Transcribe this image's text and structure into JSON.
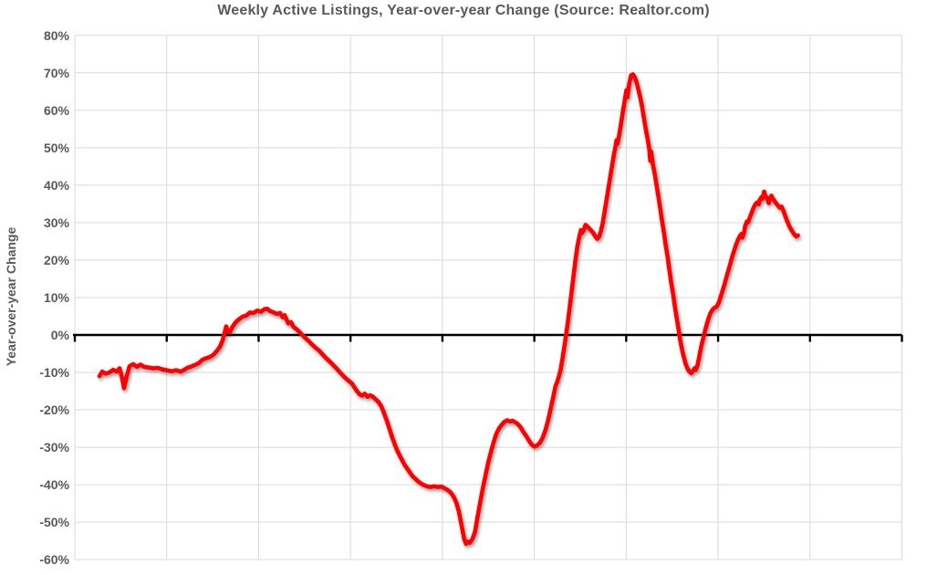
{
  "colors": {
    "line": "#FF0000",
    "grid": "#D9D9D9",
    "axis": "#000000",
    "text": "#595959",
    "background": "#FFFFFF"
  },
  "chart_data": {
    "type": "line",
    "title": "Weekly Active Listings, Year-over-year Change (Source: Realtor.com)",
    "xlabel": "",
    "ylabel": "Year-over-year Change",
    "ylim": [
      -60,
      80
    ],
    "y_ticks": [
      80,
      70,
      60,
      50,
      40,
      30,
      20,
      10,
      0,
      -10,
      -20,
      -30,
      -40,
      -50,
      -60
    ],
    "y_tick_labels": [
      "80%",
      "70%",
      "60%",
      "50%",
      "40%",
      "30%",
      "20%",
      "10%",
      "0%",
      "-10%",
      "-20%",
      "-30%",
      "-40%",
      "-50%",
      "-60%"
    ],
    "x_axis": {
      "tick_labels_visible": false,
      "gridline_intervals": 9,
      "zero_line": true
    },
    "grid": true,
    "legend": false,
    "series": [
      {
        "name": "Weekly Active Listings YoY %",
        "color": "#FF0000",
        "x_unit": "percent_across_plot",
        "points": [
          [
            2.98,
            -11
          ],
          [
            3.31,
            -9.8
          ],
          [
            3.75,
            -10.3
          ],
          [
            4.19,
            -10
          ],
          [
            4.63,
            -9.3
          ],
          [
            5.07,
            -9.8
          ],
          [
            5.4,
            -8.9
          ],
          [
            5.73,
            -11.5
          ],
          [
            5.95,
            -14.2
          ],
          [
            6.28,
            -11
          ],
          [
            6.62,
            -8.3
          ],
          [
            7.06,
            -7.8
          ],
          [
            7.5,
            -8.5
          ],
          [
            7.94,
            -7.9
          ],
          [
            8.38,
            -8.5
          ],
          [
            8.93,
            -8.7
          ],
          [
            9.48,
            -8.9
          ],
          [
            10.03,
            -8.8
          ],
          [
            10.58,
            -9.2
          ],
          [
            11.13,
            -9.4
          ],
          [
            11.69,
            -9.7
          ],
          [
            12.24,
            -9.4
          ],
          [
            12.79,
            -9.8
          ],
          [
            13.23,
            -9.3
          ],
          [
            13.67,
            -8.7
          ],
          [
            14.11,
            -8.4
          ],
          [
            14.55,
            -8
          ],
          [
            14.99,
            -7.5
          ],
          [
            15.44,
            -6.6
          ],
          [
            15.88,
            -6.2
          ],
          [
            16.32,
            -5.9
          ],
          [
            16.76,
            -5.3
          ],
          [
            17.2,
            -4.2
          ],
          [
            17.53,
            -3.2
          ],
          [
            17.86,
            -1.5
          ],
          [
            18.08,
            0.3
          ],
          [
            18.3,
            2.3
          ],
          [
            18.52,
            0.8
          ],
          [
            18.74,
            0.7
          ],
          [
            19.07,
            2.2
          ],
          [
            19.4,
            3.3
          ],
          [
            19.85,
            4.2
          ],
          [
            20.29,
            4.9
          ],
          [
            20.73,
            5.2
          ],
          [
            21.17,
            6
          ],
          [
            21.61,
            5.9
          ],
          [
            22.05,
            6.5
          ],
          [
            22.49,
            6.2
          ],
          [
            22.93,
            6.9
          ],
          [
            23.26,
            7
          ],
          [
            23.59,
            6.4
          ],
          [
            24.04,
            6
          ],
          [
            24.48,
            5.6
          ],
          [
            24.81,
            5.9
          ],
          [
            25.14,
            4.7
          ],
          [
            25.36,
            5.3
          ],
          [
            25.58,
            4.2
          ],
          [
            25.8,
            3.1
          ],
          [
            26.13,
            3.4
          ],
          [
            26.46,
            2.1
          ],
          [
            26.9,
            1.4
          ],
          [
            27.34,
            0.4
          ],
          [
            27.78,
            -0.6
          ],
          [
            28.23,
            -1.5
          ],
          [
            28.67,
            -2.5
          ],
          [
            29.11,
            -3.4
          ],
          [
            29.55,
            -4.2
          ],
          [
            29.99,
            -5.3
          ],
          [
            30.43,
            -6.3
          ],
          [
            30.87,
            -7.2
          ],
          [
            31.31,
            -8.2
          ],
          [
            31.75,
            -9.2
          ],
          [
            32.19,
            -10.3
          ],
          [
            32.63,
            -11.3
          ],
          [
            33.08,
            -12.2
          ],
          [
            33.52,
            -13
          ],
          [
            33.96,
            -14.5
          ],
          [
            34.4,
            -15.8
          ],
          [
            34.73,
            -16.2
          ],
          [
            35.06,
            -15.7
          ],
          [
            35.39,
            -16.5
          ],
          [
            35.72,
            -16.1
          ],
          [
            36.05,
            -16.5
          ],
          [
            36.38,
            -17.2
          ],
          [
            36.71,
            -17.9
          ],
          [
            37.04,
            -19
          ],
          [
            37.38,
            -20.8
          ],
          [
            37.71,
            -22.8
          ],
          [
            38.04,
            -25
          ],
          [
            38.37,
            -27.3
          ],
          [
            38.7,
            -29.3
          ],
          [
            39.03,
            -31.1
          ],
          [
            39.47,
            -33
          ],
          [
            39.91,
            -34.8
          ],
          [
            40.35,
            -36.2
          ],
          [
            40.79,
            -37.6
          ],
          [
            41.23,
            -38.5
          ],
          [
            41.68,
            -39.4
          ],
          [
            42.12,
            -40
          ],
          [
            42.56,
            -40.4
          ],
          [
            43,
            -40.6
          ],
          [
            43.44,
            -40.4
          ],
          [
            43.88,
            -40.6
          ],
          [
            44.32,
            -40.5
          ],
          [
            44.76,
            -41
          ],
          [
            45.09,
            -41.4
          ],
          [
            45.42,
            -42
          ],
          [
            45.75,
            -43
          ],
          [
            46.09,
            -44.5
          ],
          [
            46.42,
            -47
          ],
          [
            46.64,
            -49.5
          ],
          [
            46.86,
            -52
          ],
          [
            47.08,
            -54.5
          ],
          [
            47.3,
            -55.8
          ],
          [
            47.52,
            -55.2
          ],
          [
            47.74,
            -55.5
          ],
          [
            48.07,
            -54.5
          ],
          [
            48.4,
            -52.5
          ],
          [
            48.62,
            -49.5
          ],
          [
            48.95,
            -45.5
          ],
          [
            49.28,
            -41.5
          ],
          [
            49.61,
            -38
          ],
          [
            49.94,
            -34.5
          ],
          [
            50.28,
            -31.5
          ],
          [
            50.61,
            -28.8
          ],
          [
            50.94,
            -26.5
          ],
          [
            51.27,
            -25
          ],
          [
            51.6,
            -24
          ],
          [
            51.93,
            -23.2
          ],
          [
            52.26,
            -22.8
          ],
          [
            52.59,
            -23.1
          ],
          [
            52.92,
            -22.9
          ],
          [
            53.25,
            -23.3
          ],
          [
            53.58,
            -23.8
          ],
          [
            53.91,
            -24.7
          ],
          [
            54.24,
            -25.9
          ],
          [
            54.58,
            -27
          ],
          [
            54.91,
            -28.2
          ],
          [
            55.24,
            -29.3
          ],
          [
            55.57,
            -29.8
          ],
          [
            55.9,
            -29.5
          ],
          [
            56.23,
            -28.8
          ],
          [
            56.56,
            -27.5
          ],
          [
            56.89,
            -25.5
          ],
          [
            57.22,
            -22.8
          ],
          [
            57.55,
            -19.5
          ],
          [
            57.88,
            -16.2
          ],
          [
            58.1,
            -13.8
          ],
          [
            58.32,
            -12.5
          ],
          [
            58.54,
            -11
          ],
          [
            58.76,
            -9
          ],
          [
            58.98,
            -6
          ],
          [
            59.21,
            -2.8
          ],
          [
            59.43,
            0.5
          ],
          [
            59.65,
            4
          ],
          [
            59.87,
            8
          ],
          [
            60.09,
            12
          ],
          [
            60.31,
            16
          ],
          [
            60.53,
            20
          ],
          [
            60.75,
            23.5
          ],
          [
            60.97,
            26
          ],
          [
            61.19,
            28
          ],
          [
            61.3,
            27.2
          ],
          [
            61.52,
            27.9
          ],
          [
            61.74,
            29.4
          ],
          [
            61.96,
            29
          ],
          [
            62.29,
            28.2
          ],
          [
            62.62,
            27.4
          ],
          [
            62.95,
            26.3
          ],
          [
            63.18,
            25.7
          ],
          [
            63.4,
            26.3
          ],
          [
            63.62,
            27.8
          ],
          [
            63.84,
            30
          ],
          [
            64.06,
            33
          ],
          [
            64.28,
            36
          ],
          [
            64.5,
            39
          ],
          [
            64.72,
            42
          ],
          [
            64.94,
            45
          ],
          [
            65.16,
            48
          ],
          [
            65.38,
            50.5
          ],
          [
            65.49,
            52
          ],
          [
            65.6,
            51
          ],
          [
            65.82,
            53.5
          ],
          [
            66.04,
            56.5
          ],
          [
            66.26,
            59.5
          ],
          [
            66.48,
            62.5
          ],
          [
            66.7,
            65.4
          ],
          [
            66.81,
            63.5
          ],
          [
            67.03,
            67
          ],
          [
            67.25,
            69.3
          ],
          [
            67.48,
            69.6
          ],
          [
            67.7,
            68.8
          ],
          [
            67.92,
            67.5
          ],
          [
            68.14,
            65.5
          ],
          [
            68.36,
            63.5
          ],
          [
            68.58,
            61
          ],
          [
            68.8,
            58
          ],
          [
            69.02,
            55
          ],
          [
            69.24,
            52.5
          ],
          [
            69.46,
            49.5
          ],
          [
            69.57,
            46.5
          ],
          [
            69.68,
            49
          ],
          [
            69.9,
            45.5
          ],
          [
            70.12,
            43
          ],
          [
            70.34,
            40
          ],
          [
            70.56,
            37
          ],
          [
            70.78,
            33.8
          ],
          [
            71,
            30.5
          ],
          [
            71.22,
            27.5
          ],
          [
            71.44,
            24
          ],
          [
            71.66,
            21
          ],
          [
            71.88,
            17.5
          ],
          [
            72.1,
            14
          ],
          [
            72.33,
            11
          ],
          [
            72.55,
            7.5
          ],
          [
            72.77,
            4.5
          ],
          [
            72.99,
            1.5
          ],
          [
            73.21,
            -1.5
          ],
          [
            73.43,
            -4
          ],
          [
            73.65,
            -6
          ],
          [
            73.87,
            -7.8
          ],
          [
            74.09,
            -9
          ],
          [
            74.31,
            -9.8
          ],
          [
            74.53,
            -10.2
          ],
          [
            74.75,
            -9.5
          ],
          [
            74.97,
            -8.8
          ],
          [
            75.08,
            -9.3
          ],
          [
            75.3,
            -8
          ],
          [
            75.52,
            -5.5
          ],
          [
            75.74,
            -3
          ],
          [
            75.96,
            -1
          ],
          [
            76.18,
            1
          ],
          [
            76.41,
            2.9
          ],
          [
            76.63,
            4.5
          ],
          [
            76.85,
            5.8
          ],
          [
            77.07,
            6.6
          ],
          [
            77.29,
            7.2
          ],
          [
            77.51,
            7.4
          ],
          [
            77.73,
            8
          ],
          [
            77.95,
            9.2
          ],
          [
            78.17,
            10.8
          ],
          [
            78.39,
            12.3
          ],
          [
            78.61,
            14
          ],
          [
            78.83,
            15.8
          ],
          [
            79.05,
            17.5
          ],
          [
            79.27,
            19.2
          ],
          [
            79.49,
            21
          ],
          [
            79.71,
            22.5
          ],
          [
            79.93,
            24
          ],
          [
            80.15,
            25.3
          ],
          [
            80.37,
            26.3
          ],
          [
            80.6,
            27
          ],
          [
            80.71,
            26
          ],
          [
            80.93,
            27.5
          ],
          [
            81.04,
            29
          ],
          [
            81.26,
            30.3
          ],
          [
            81.37,
            30
          ],
          [
            81.59,
            31.2
          ],
          [
            81.81,
            32.5
          ],
          [
            82.03,
            33.8
          ],
          [
            82.25,
            34.8
          ],
          [
            82.47,
            35.4
          ],
          [
            82.69,
            34.9
          ],
          [
            82.8,
            36
          ],
          [
            83.02,
            36.8
          ],
          [
            83.13,
            36.3
          ],
          [
            83.35,
            38.3
          ],
          [
            83.46,
            37.2
          ],
          [
            83.68,
            36.6
          ],
          [
            83.9,
            35.2
          ],
          [
            84.01,
            36.2
          ],
          [
            84.23,
            37.2
          ],
          [
            84.34,
            36.6
          ],
          [
            84.56,
            35.9
          ],
          [
            84.78,
            35.2
          ],
          [
            85,
            34.6
          ],
          [
            85.23,
            34
          ],
          [
            85.45,
            34.3
          ],
          [
            85.67,
            33.2
          ],
          [
            85.89,
            31.8
          ],
          [
            86.11,
            30.5
          ],
          [
            86.33,
            29.3
          ],
          [
            86.55,
            28.4
          ],
          [
            86.77,
            27.6
          ],
          [
            86.99,
            26.8
          ],
          [
            87.21,
            26.3
          ],
          [
            87.43,
            26.6
          ]
        ]
      }
    ]
  }
}
